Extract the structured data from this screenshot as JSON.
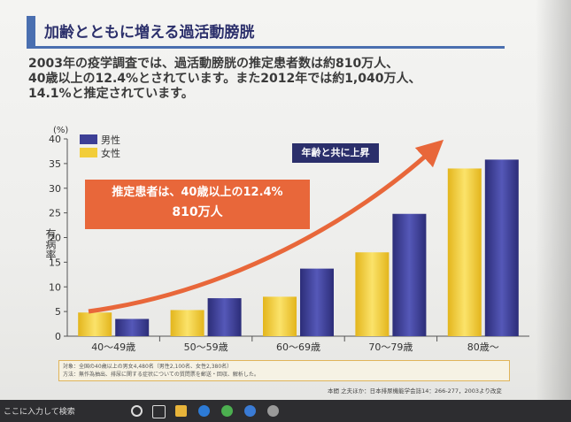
{
  "slide": {
    "title": "加齢とともに増える過活動膀胱",
    "desc_lines": [
      "2003年の疫学調査では、過活動膀胱の推定患者数は約810万人、",
      "40歳以上の12.4%とされています。また2012年では約1,040万人、",
      "14.1%と推定されています。"
    ],
    "callout_line1": "推定患者は、40歳以上の12.4%",
    "callout_line2": "810万人",
    "trend_label": "年齢と共に上昇",
    "ylabel": "有病率",
    "yunit": "(%)",
    "notes_line1": "対象：全国の40歳以上の男女4,480名（男性2,100名、女性2,380名）",
    "notes_line2": "方法：無作為抽出、排尿に関する症状についての質問票を郵送・回収、解析した。",
    "source": "本間 之夫ほか：日本排尿機能学会誌14：266-277，2003より改変"
  },
  "colors": {
    "male": "#3d3f96",
    "female": "#f2cd3a",
    "arrow": "#e8673a",
    "title": "#2b2f6b"
  },
  "chart_data": {
    "type": "bar",
    "categories": [
      "40～49歳",
      "50～59歳",
      "60～69歳",
      "70～79歳",
      "80歳～"
    ],
    "series": [
      {
        "name": "男性",
        "values": [
          3.5,
          7.7,
          13.7,
          24.8,
          35.8
        ]
      },
      {
        "name": "女性",
        "values": [
          4.8,
          5.3,
          8.0,
          17.0,
          34.0
        ]
      }
    ],
    "yticks": [
      0,
      5,
      10,
      15,
      20,
      25,
      30,
      35,
      40
    ],
    "ylim": [
      0,
      40
    ],
    "ylabel": "有病率",
    "legend_position": "top-left",
    "grid": false
  },
  "taskbar": {
    "search_text": "ここに入力して検索"
  }
}
